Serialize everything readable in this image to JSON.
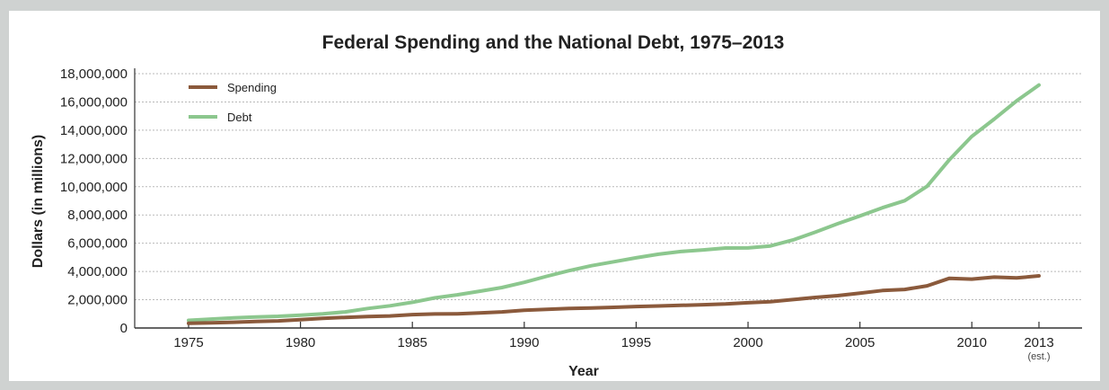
{
  "chart_data": {
    "type": "line",
    "title": "Federal Spending and the National Debt, 1975–2013",
    "xlabel": "Year",
    "ylabel": "Dollars (in millions)",
    "xlim": [
      1975,
      2013
    ],
    "ylim": [
      0,
      18000000
    ],
    "x_ticks": [
      1975,
      1980,
      1985,
      1990,
      1995,
      2000,
      2005,
      2010,
      2013
    ],
    "x_tick_labels": [
      "1975",
      "1980",
      "1985",
      "1990",
      "1995",
      "2000",
      "2005",
      "2010",
      "2013"
    ],
    "x_tick_note": "(est.)",
    "y_ticks": [
      0,
      2000000,
      4000000,
      6000000,
      8000000,
      10000000,
      12000000,
      14000000,
      16000000,
      18000000
    ],
    "y_tick_labels": [
      "0",
      "2,000,000",
      "4,000,000",
      "6,000,000",
      "8,000,000",
      "10,000,000",
      "12,000,000",
      "14,000,000",
      "16,000,000",
      "18,000,000"
    ],
    "grid": true,
    "legend_position": "top-left",
    "x": [
      1975,
      1976,
      1977,
      1978,
      1979,
      1980,
      1981,
      1982,
      1983,
      1984,
      1985,
      1986,
      1987,
      1988,
      1989,
      1990,
      1991,
      1992,
      1993,
      1994,
      1995,
      1996,
      1997,
      1998,
      1999,
      2000,
      2001,
      2002,
      2003,
      2004,
      2005,
      2006,
      2007,
      2008,
      2009,
      2010,
      2011,
      2012,
      2013
    ],
    "series": [
      {
        "name": "Spending",
        "color": "#8b5a3c",
        "values": [
          330000,
          370000,
          410000,
          460000,
          500000,
          590000,
          680000,
          750000,
          810000,
          850000,
          950000,
          990000,
          1000000,
          1060000,
          1140000,
          1250000,
          1320000,
          1380000,
          1410000,
          1460000,
          1520000,
          1560000,
          1600000,
          1650000,
          1700000,
          1790000,
          1860000,
          2010000,
          2160000,
          2290000,
          2470000,
          2650000,
          2730000,
          2980000,
          3520000,
          3460000,
          3600000,
          3540000,
          3690000
        ]
      },
      {
        "name": "Debt",
        "color": "#8cc78e",
        "values": [
          540000,
          630000,
          710000,
          780000,
          830000,
          910000,
          1000000,
          1140000,
          1380000,
          1570000,
          1820000,
          2130000,
          2350000,
          2600000,
          2860000,
          3230000,
          3660000,
          4060000,
          4410000,
          4690000,
          4970000,
          5220000,
          5410000,
          5530000,
          5660000,
          5670000,
          5810000,
          6230000,
          6780000,
          7380000,
          7930000,
          8510000,
          9010000,
          10030000,
          11910000,
          13560000,
          14790000,
          16070000,
          17200000
        ]
      }
    ]
  }
}
